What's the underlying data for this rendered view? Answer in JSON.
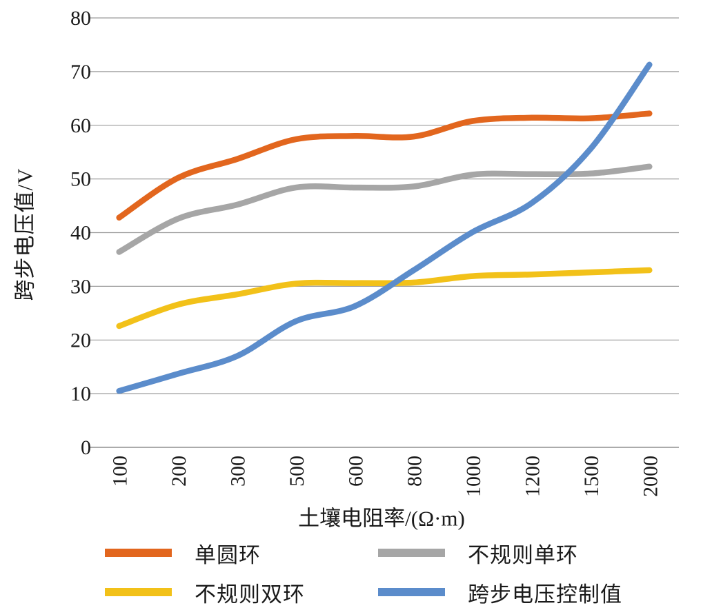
{
  "chart_data": {
    "type": "line",
    "title": "",
    "xlabel": "土壤电阻率/(Ω·m)",
    "ylabel": "跨步电压值/V",
    "categories": [
      "100",
      "200",
      "300",
      "500",
      "600",
      "800",
      "1000",
      "1200",
      "1500",
      "2000"
    ],
    "y_tick_labels": [
      "0",
      "10",
      "20",
      "30",
      "40",
      "50",
      "60",
      "70",
      "80"
    ],
    "ylim": [
      0,
      80
    ],
    "ytick_step": 10,
    "grid": true,
    "legend_position": "bottom",
    "series": [
      {
        "name": "单圆环",
        "color": "#E2661E",
        "values": [
          42.8,
          50.2,
          53.7,
          57.4,
          58.0,
          57.9,
          60.8,
          61.4,
          61.3,
          62.2
        ]
      },
      {
        "name": "不规则单环",
        "color": "#A6A6A6",
        "values": [
          36.4,
          42.6,
          45.2,
          48.4,
          48.4,
          48.6,
          50.8,
          50.9,
          51.0,
          52.3
        ]
      },
      {
        "name": "不规则双环",
        "color": "#F2C119",
        "values": [
          22.6,
          26.6,
          28.5,
          30.5,
          30.6,
          30.7,
          31.9,
          32.2,
          32.6,
          33.0
        ]
      },
      {
        "name": "跨步电压控制值",
        "color": "#5B8CCB",
        "values": [
          10.5,
          13.7,
          17.0,
          23.5,
          26.3,
          33.0,
          40.1,
          45.5,
          55.6,
          71.3
        ]
      }
    ],
    "gridline_color": "#9b9b9b",
    "axis_line_color": "#8f8f8f",
    "text_color": "#1a1a1a"
  }
}
